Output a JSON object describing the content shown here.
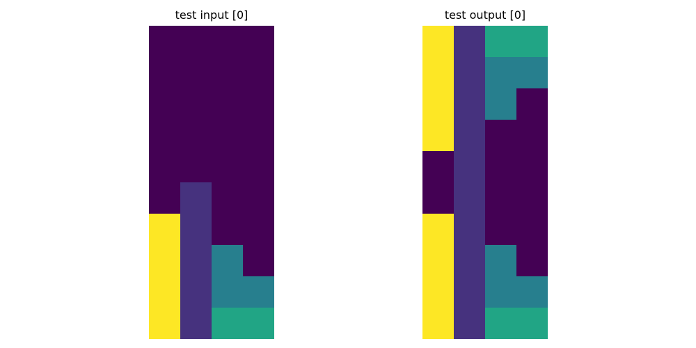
{
  "palette": {
    "0": "#440154",
    "1": "#46327e",
    "2": "#277f8e",
    "3": "#21a585",
    "4": "#fde725"
  },
  "panels": {
    "input": {
      "title": "test input [0]",
      "grid": [
        [
          0,
          0,
          0,
          0
        ],
        [
          0,
          0,
          0,
          0
        ],
        [
          0,
          0,
          0,
          0
        ],
        [
          0,
          0,
          0,
          0
        ],
        [
          0,
          0,
          0,
          0
        ],
        [
          0,
          1,
          0,
          0
        ],
        [
          4,
          1,
          0,
          0
        ],
        [
          4,
          1,
          2,
          0
        ],
        [
          4,
          1,
          2,
          2
        ],
        [
          4,
          1,
          3,
          3
        ]
      ]
    },
    "output": {
      "title": "test output [0]",
      "grid": [
        [
          4,
          1,
          3,
          3
        ],
        [
          4,
          1,
          2,
          2
        ],
        [
          4,
          1,
          2,
          0
        ],
        [
          4,
          1,
          0,
          0
        ],
        [
          0,
          1,
          0,
          0
        ],
        [
          0,
          1,
          0,
          0
        ],
        [
          4,
          1,
          0,
          0
        ],
        [
          4,
          1,
          2,
          0
        ],
        [
          4,
          1,
          2,
          2
        ],
        [
          4,
          1,
          3,
          3
        ]
      ]
    }
  }
}
